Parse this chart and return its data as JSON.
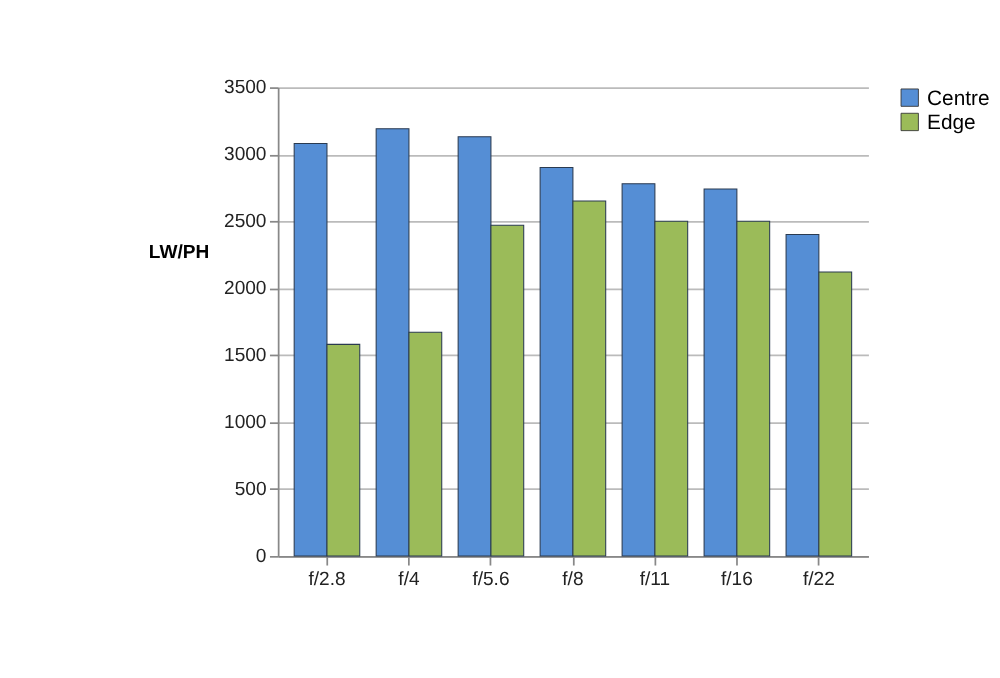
{
  "chart_data": {
    "type": "bar",
    "ylabel": "LW/PH",
    "categories": [
      "f/2.8",
      "f/4",
      "f/5.6",
      "f/8",
      "f/11",
      "f/16",
      "f/22"
    ],
    "series": [
      {
        "name": "Centre",
        "color": "#558ed5",
        "values": [
          3080,
          3190,
          3130,
          2900,
          2780,
          2740,
          2400
        ]
      },
      {
        "name": "Edge",
        "color": "#9bbb59",
        "values": [
          1580,
          1670,
          2470,
          2650,
          2500,
          2500,
          2120
        ]
      }
    ],
    "ylim": [
      0,
      3500
    ],
    "yticks": [
      0,
      500,
      1000,
      1500,
      2000,
      2500,
      3000,
      3500
    ],
    "grid": "y",
    "legend": "right"
  }
}
